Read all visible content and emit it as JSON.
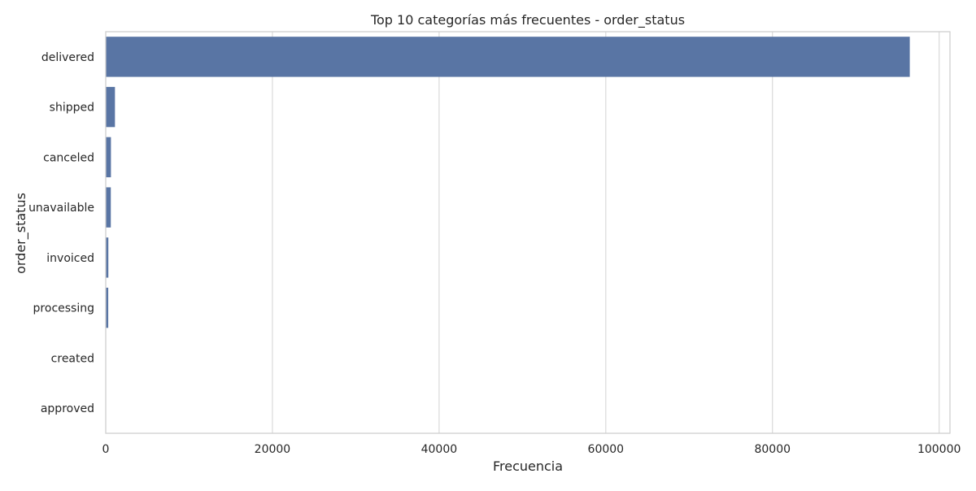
{
  "chart_data": {
    "type": "bar",
    "orientation": "horizontal",
    "title": "Top 10 categorías más frecuentes - order_status",
    "xlabel": "Frecuencia",
    "ylabel": "order_status",
    "categories": [
      "delivered",
      "shipped",
      "canceled",
      "unavailable",
      "invoiced",
      "processing",
      "created",
      "approved"
    ],
    "values": [
      96478,
      1107,
      625,
      609,
      314,
      301,
      5,
      2
    ],
    "xlim": [
      0,
      100000
    ],
    "xticks": [
      0,
      20000,
      40000,
      60000,
      80000,
      100000
    ],
    "grid": "x",
    "legend": "none",
    "bar_color": "#5975a4",
    "grid_color": "#d9d9d9",
    "spine_color": "#cccccc"
  }
}
